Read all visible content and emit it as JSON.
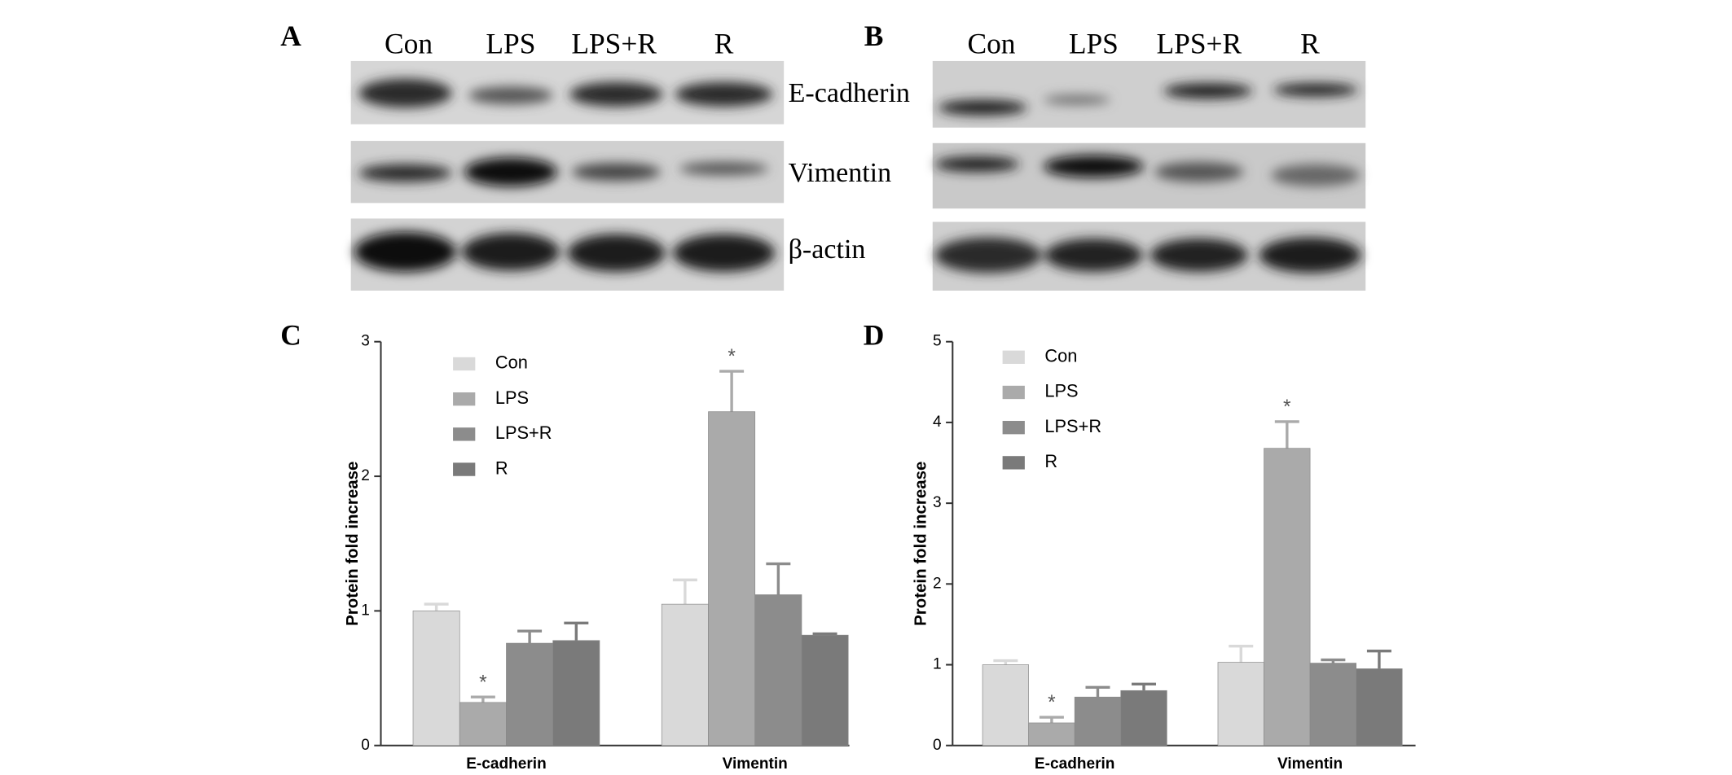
{
  "blots": [
    {
      "panel": "A",
      "lanes": [
        "Con",
        "LPS",
        "LPS+R",
        "R"
      ],
      "proteins": [
        "E-cadherin",
        "Vimentin",
        "β-actin"
      ]
    },
    {
      "panel": "B",
      "lanes": [
        "Con",
        "LPS",
        "LPS+R",
        "R"
      ]
    }
  ],
  "chart_data": [
    {
      "type": "bar",
      "panel": "C",
      "y_label": "Protein fold increase",
      "categories": [
        "E-cadherin",
        "Vimentin"
      ],
      "ylim": [
        0,
        3
      ],
      "yticks": [
        0,
        1,
        2,
        3
      ],
      "series": [
        {
          "name": "Con",
          "color": "#d9d9d9",
          "values": [
            1.0,
            1.05
          ],
          "errors": [
            0.05,
            0.18
          ]
        },
        {
          "name": "LPS",
          "color": "#aaaaaa",
          "values": [
            0.32,
            2.48
          ],
          "errors": [
            0.04,
            0.3
          ],
          "annotations": [
            "*",
            "*"
          ]
        },
        {
          "name": "LPS+R",
          "color": "#8c8c8c",
          "values": [
            0.76,
            1.12
          ],
          "errors": [
            0.09,
            0.23
          ]
        },
        {
          "name": "R",
          "color": "#7a7a7a",
          "values": [
            0.78,
            0.82
          ],
          "errors": [
            0.13,
            0.01
          ]
        }
      ]
    },
    {
      "type": "bar",
      "panel": "D",
      "y_label": "Protein fold increase",
      "categories": [
        "E-cadherin",
        "Vimentin"
      ],
      "ylim": [
        0,
        5
      ],
      "yticks": [
        0,
        1,
        2,
        3,
        4,
        5
      ],
      "series": [
        {
          "name": "Con",
          "color": "#d9d9d9",
          "values": [
            1.0,
            1.03
          ],
          "errors": [
            0.05,
            0.2
          ]
        },
        {
          "name": "LPS",
          "color": "#aaaaaa",
          "values": [
            0.28,
            3.68
          ],
          "errors": [
            0.07,
            0.33
          ],
          "annotations": [
            "*",
            "*"
          ]
        },
        {
          "name": "LPS+R",
          "color": "#8c8c8c",
          "values": [
            0.6,
            1.02
          ],
          "errors": [
            0.12,
            0.04
          ]
        },
        {
          "name": "R",
          "color": "#7a7a7a",
          "values": [
            0.68,
            0.95
          ],
          "errors": [
            0.08,
            0.22
          ]
        }
      ]
    }
  ]
}
